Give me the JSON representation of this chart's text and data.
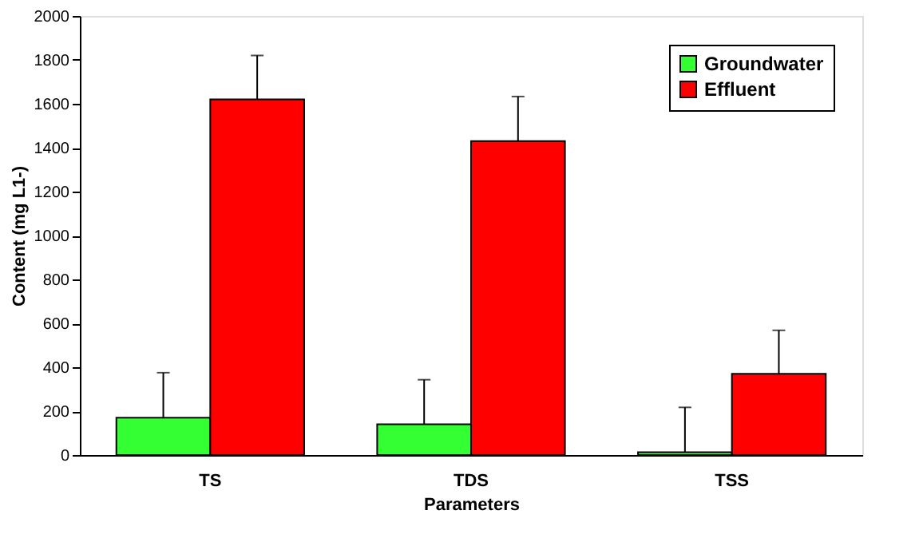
{
  "chart_data": {
    "type": "bar",
    "xlabel": "Parameters",
    "ylabel": "Content (mg L1-)",
    "categories": [
      "TS",
      "TDS",
      "TSS"
    ],
    "series": [
      {
        "name": "Groundwater",
        "color": "#33ff33",
        "values": [
          170,
          140,
          13
        ],
        "errors": [
          [
            170,
            375
          ],
          [
            140,
            343
          ],
          [
            13,
            217
          ]
        ]
      },
      {
        "name": "Effluent",
        "color": "#ff0000",
        "values": [
          1620,
          1430,
          370
        ],
        "errors": [
          [
            1620,
            1820
          ],
          [
            1430,
            1633
          ],
          [
            370,
            568
          ]
        ]
      }
    ],
    "ylim": [
      0,
      2000
    ],
    "yticks": [
      0,
      200,
      400,
      600,
      800,
      1000,
      1200,
      1400,
      1600,
      1800,
      2000
    ],
    "grid": false,
    "legend": "top right"
  }
}
